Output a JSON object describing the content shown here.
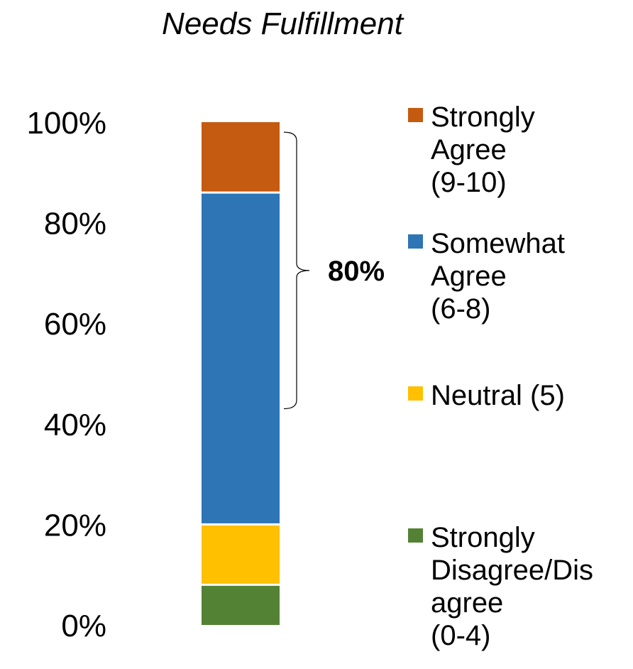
{
  "chart_data": {
    "type": "bar",
    "stacked": true,
    "title": "Needs Fulfillment",
    "xlabel": "",
    "ylabel": "",
    "ylim": [
      0,
      100
    ],
    "yticks": [
      "0%",
      "20%",
      "40%",
      "60%",
      "80%",
      "100%"
    ],
    "ytick_values": [
      0,
      20,
      40,
      60,
      80,
      100
    ],
    "grid": false,
    "legend_position": "right",
    "series": [
      {
        "name": "Strongly Disagree/Disagree (0-4)",
        "values": [
          8
        ],
        "color": "#548235",
        "legend_lines": [
          "Strongly",
          "Disagree/Dis",
          "agree",
          "(0-4)"
        ]
      },
      {
        "name": "Neutral (5)",
        "values": [
          12
        ],
        "color": "#FFC000",
        "legend_lines": [
          "Neutral (5)"
        ]
      },
      {
        "name": "Somewhat Agree (6-8)",
        "values": [
          66
        ],
        "color": "#2E75B6",
        "legend_lines": [
          "Somewhat",
          "Agree",
          "(6-8)"
        ]
      },
      {
        "name": "Strongly Agree (9-10)",
        "values": [
          14
        ],
        "color": "#C55A11",
        "legend_lines": [
          "Strongly",
          "Agree",
          "(9-10)"
        ]
      }
    ],
    "annotations": [
      {
        "type": "bracket",
        "label": "80%",
        "from": 43,
        "to": 98
      }
    ]
  }
}
